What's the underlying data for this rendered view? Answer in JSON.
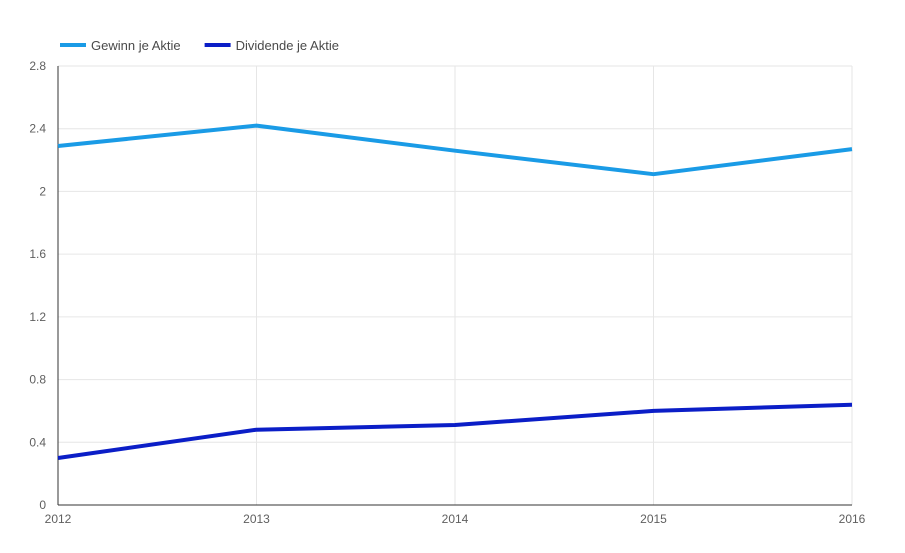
{
  "chart_data": {
    "type": "line",
    "title": "",
    "xlabel": "",
    "ylabel": "",
    "x": [
      2012,
      2013,
      2014,
      2015,
      2016
    ],
    "x_tick_labels": [
      "2012",
      "2013",
      "2014",
      "2015",
      "2016"
    ],
    "ylim": [
      0,
      2.8
    ],
    "y_ticks": [
      0,
      0.4,
      0.8,
      1.2,
      1.6,
      2,
      2.4,
      2.8
    ],
    "y_tick_labels": [
      "0",
      "0.4",
      "0.8",
      "1.2",
      "1.6",
      "2",
      "2.4",
      "2.8"
    ],
    "grid": true,
    "legend_position": "top-left",
    "series": [
      {
        "name": "Gewinn je Aktie",
        "color": "#1a9be6",
        "values": [
          2.29,
          2.42,
          2.26,
          2.11,
          2.27
        ]
      },
      {
        "name": "Dividende je Aktie",
        "color": "#0b1ec7",
        "values": [
          0.3,
          0.48,
          0.51,
          0.6,
          0.64
        ]
      }
    ]
  }
}
